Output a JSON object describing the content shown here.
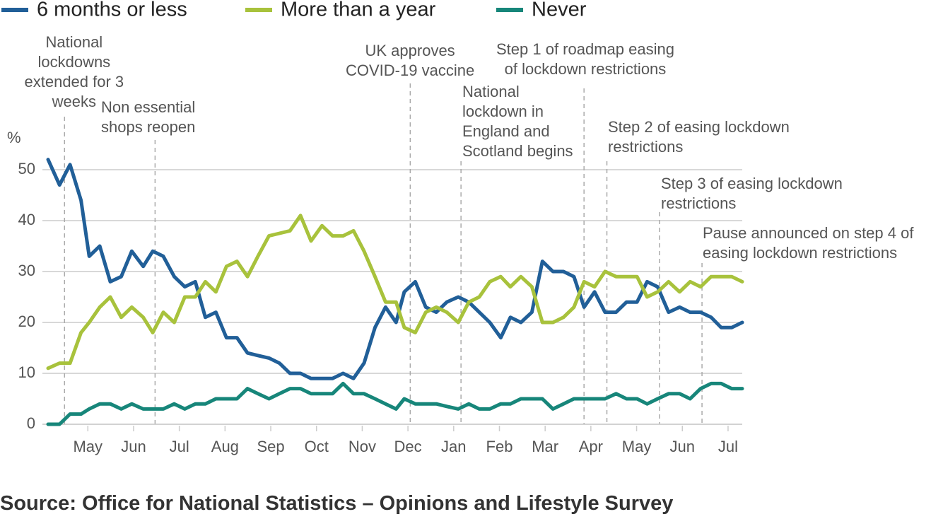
{
  "chart_data": {
    "type": "line",
    "y_label": "%",
    "source": "Source: Office for National Statistics – Opinions and Lifestyle Survey",
    "x": [
      0.13,
      0.38,
      0.61,
      0.85,
      1.03,
      1.26,
      1.49,
      1.73,
      1.96,
      2.21,
      2.42,
      2.65,
      2.89,
      3.12,
      3.35,
      3.57,
      3.8,
      4.03,
      4.26,
      4.49,
      4.72,
      4.96,
      5.19,
      5.42,
      5.65,
      5.88,
      6.12,
      6.35,
      6.58,
      6.81,
      7.04,
      7.28,
      7.51,
      7.74,
      7.92,
      8.16,
      8.39,
      8.62,
      8.85,
      9.1,
      9.33,
      9.56,
      9.79,
      10.03,
      10.24,
      10.47,
      10.71,
      10.94,
      11.17,
      11.4,
      11.63,
      11.85,
      12.08,
      12.31,
      12.55,
      12.78,
      13.01,
      13.23,
      13.46,
      13.7,
      13.94,
      14.17,
      14.4,
      14.63,
      14.85,
      15.08,
      15.31
    ],
    "series": [
      {
        "name": "6 months or less",
        "color": "#215f98",
        "values": [
          52,
          47,
          51,
          44,
          33,
          35,
          28,
          29,
          34,
          31,
          34,
          33,
          29,
          27,
          28,
          21,
          22,
          17,
          17,
          14,
          13.5,
          13,
          12,
          10,
          10,
          9,
          9,
          9,
          10,
          9,
          12,
          19,
          23,
          20,
          26,
          28,
          23,
          22,
          24,
          25,
          24,
          22,
          20,
          17,
          21,
          20,
          22,
          32,
          30,
          30,
          29,
          23,
          26,
          22,
          22,
          24,
          24,
          28,
          27,
          22,
          23,
          22,
          22,
          21,
          19,
          19,
          20
        ]
      },
      {
        "name": "More than a year",
        "color": "#a8c23c",
        "values": [
          11,
          12,
          12,
          18,
          20,
          23,
          25,
          21,
          23,
          21,
          18,
          22,
          20,
          25,
          25,
          28,
          26,
          31,
          32,
          29,
          33,
          37,
          37.5,
          38,
          41,
          36,
          39,
          37,
          37,
          38,
          34,
          29,
          24,
          24,
          19,
          18,
          22,
          23,
          22,
          20,
          24,
          25,
          28,
          29,
          27,
          29,
          27,
          20,
          20,
          21,
          23,
          28,
          27,
          30,
          29,
          29,
          29,
          25,
          26,
          28,
          26,
          28,
          27,
          29,
          29,
          29,
          28
        ]
      },
      {
        "name": "Never",
        "color": "#17867a",
        "values": [
          0,
          0,
          2,
          2,
          3,
          4,
          4,
          3,
          4,
          3,
          3,
          3,
          4,
          3,
          4,
          4,
          5,
          5,
          5,
          7,
          6,
          5,
          6,
          7,
          7,
          6,
          6,
          6,
          8,
          6,
          6,
          5,
          4,
          3,
          5,
          4,
          4,
          4,
          3.5,
          3,
          4,
          3,
          3,
          4,
          4,
          5,
          5,
          5,
          3,
          4,
          5,
          5,
          5,
          5,
          6,
          5,
          5,
          4,
          5,
          6,
          6,
          5,
          7,
          8,
          8,
          7,
          7
        ]
      }
    ],
    "xlim": [
      0.13,
      15.31
    ],
    "xticks": [
      {
        "value": 1,
        "label": "May"
      },
      {
        "value": 2,
        "label": "Jun"
      },
      {
        "value": 3,
        "label": "Jul"
      },
      {
        "value": 4,
        "label": "Aug"
      },
      {
        "value": 5,
        "label": "Sep"
      },
      {
        "value": 6,
        "label": "Oct"
      },
      {
        "value": 7,
        "label": "Nov"
      },
      {
        "value": 8,
        "label": "Dec"
      },
      {
        "value": 9,
        "label": "Jan"
      },
      {
        "value": 10,
        "label": "Feb"
      },
      {
        "value": 11,
        "label": "Mar"
      },
      {
        "value": 12,
        "label": "Apr"
      },
      {
        "value": 13,
        "label": "May"
      },
      {
        "value": 14,
        "label": "Jun"
      },
      {
        "value": 15,
        "label": "Jul"
      }
    ],
    "ylim": [
      0,
      50
    ],
    "yticks": [
      0,
      10,
      20,
      30,
      40,
      50
    ],
    "grid": true,
    "annotations": [
      {
        "x": 0.49,
        "text": "National\nlockdowns\nextended for 3\nweeks"
      },
      {
        "x": 2.47,
        "text": "Non essential\nshops reopen"
      },
      {
        "x": 8.05,
        "text": "UK approves\nCOVID-19 vaccine"
      },
      {
        "x": 9.16,
        "text": "National\nlockdown in\nEngland and\nScotland begins"
      },
      {
        "x": 11.85,
        "text": "Step 1 of roadmap easing\nof lockdown restrictions"
      },
      {
        "x": 12.35,
        "text": "Step 2 of easing lockdown\nrestrictions"
      },
      {
        "x": 13.5,
        "text": "Step 3 of easing lockdown\nrestrictions"
      },
      {
        "x": 14.43,
        "text": "Pause announced on step 4 of\neasing lockdown restrictions"
      }
    ]
  }
}
